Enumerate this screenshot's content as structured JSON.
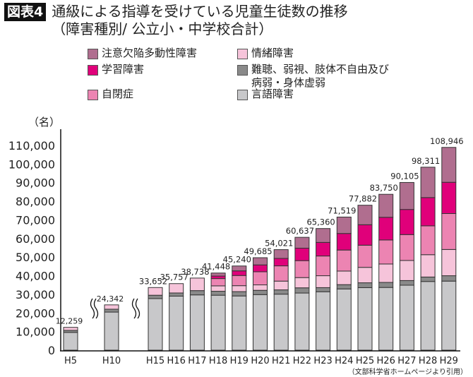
{
  "title": {
    "badge": "図表4",
    "line1": "通級による指導を受けている児童生徒数の推移",
    "line2": "（障害種別/ 公立小・中学校合計）"
  },
  "source": "（文部科学省ホームページより引用）",
  "chart_data": {
    "type": "bar",
    "stacked": true,
    "ylabel": "（名）",
    "ylim": [
      0,
      110000
    ],
    "yticks": [
      "0",
      "10,000",
      "20,000",
      "30,000",
      "40,000",
      "50,000",
      "60,000",
      "70,000",
      "80,000",
      "90,000",
      "100,000",
      "110,000"
    ],
    "axis_breaks_after": [
      "H5",
      "H10"
    ],
    "grid": false,
    "legend_position": "top",
    "categories": [
      "H5",
      "H10",
      "H15",
      "H16",
      "H17",
      "H18",
      "H19",
      "H20",
      "H21",
      "H22",
      "H23",
      "H24",
      "H25",
      "H26",
      "H27",
      "H28",
      "H29"
    ],
    "totals": [
      12259,
      24342,
      33652,
      35757,
      38738,
      41448,
      45240,
      49685,
      54021,
      60637,
      65360,
      71519,
      77882,
      83750,
      90105,
      98311,
      108946
    ],
    "total_labels": [
      "12,259",
      "24,342",
      "33,652",
      "35,757",
      "38,738",
      "41,448",
      "45,240",
      "49,685",
      "54,021",
      "60,637",
      "65,360",
      "71,519",
      "77,882",
      "83,750",
      "90,105",
      "98,311",
      "108,946"
    ],
    "series": [
      {
        "name": "言語障害",
        "color": "#c8c8ca",
        "values": [
          9547,
          20461,
          27718,
          29036,
          29700,
          29527,
          29134,
          29860,
          30100,
          30700,
          31400,
          32900,
          33600,
          33700,
          34900,
          36900,
          37100
        ]
      },
      {
        "name": "難聴、弱視、肢体不自由及び病弱・身体虚弱",
        "color": "#8a8a8a",
        "values": [
          1100,
          1547,
          1800,
          1700,
          2300,
          2129,
          2319,
          2300,
          2300,
          2800,
          2200,
          2300,
          2600,
          2700,
          2500,
          2400,
          2900
        ]
      },
      {
        "name": "情緒障害",
        "color": "#f6c4da",
        "values": [
          1612,
          2334,
          4134,
          5021,
          6738,
          2898,
          3197,
          2924,
          4700,
          5500,
          6400,
          7300,
          8300,
          9900,
          10800,
          12000,
          14100
        ]
      },
      {
        "name": "自閉症",
        "color": "#ec84b2",
        "values": [
          0,
          0,
          0,
          0,
          0,
          3912,
          5469,
          7047,
          8200,
          9100,
          10600,
          11300,
          11900,
          12900,
          13900,
          15500,
          19300
        ]
      },
      {
        "name": "学習障害",
        "color": "#e0007a",
        "values": [
          0,
          0,
          0,
          0,
          0,
          1351,
          2485,
          3682,
          4000,
          6700,
          7300,
          8900,
          11000,
          12200,
          13500,
          15200,
          16800
        ]
      },
      {
        "name": "注意欠陥多動性障害",
        "color": "#b06e8f",
        "values": [
          0,
          0,
          0,
          0,
          0,
          1631,
          2636,
          3872,
          4721,
          5837,
          7460,
          8819,
          10482,
          12350,
          14505,
          16311,
          18746
        ]
      }
    ]
  },
  "legend": [
    {
      "label": "注意欠陥多動性障害",
      "color": "#b06e8f"
    },
    {
      "label": "情緒障害",
      "color": "#f6c4da"
    },
    {
      "label": "学習障害",
      "color": "#e0007a"
    },
    {
      "label": "難聴、弱視、肢体不自由及び",
      "label2": "病弱・身体虚弱",
      "color": "#8a8a8a"
    },
    {
      "label": "自閉症",
      "color": "#ec84b2"
    },
    {
      "label": "言語障害",
      "color": "#c8c8ca"
    }
  ]
}
